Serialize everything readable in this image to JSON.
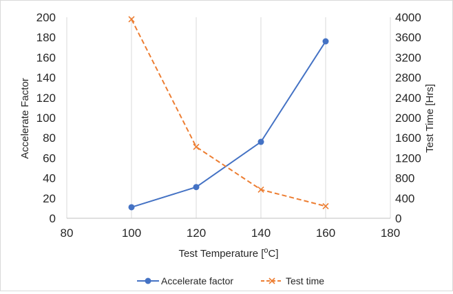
{
  "chart_data": {
    "type": "line",
    "x": [
      100,
      120,
      140,
      160
    ],
    "xlabel_parts": [
      "Test Temperature [",
      "o",
      "C]"
    ],
    "ylabel": "Accelerate  Factor",
    "y2label": "Test Time [Hrs]",
    "xlim": [
      80,
      180
    ],
    "ylim": [
      0,
      200
    ],
    "y2lim": [
      0,
      4000
    ],
    "xticks": [
      80,
      100,
      120,
      140,
      160,
      180
    ],
    "yticks": [
      0,
      20,
      40,
      60,
      80,
      100,
      120,
      140,
      160,
      180,
      200
    ],
    "y2ticks": [
      0,
      400,
      800,
      1200,
      1600,
      2000,
      2400,
      2800,
      3200,
      3600,
      4000
    ],
    "grid": "vertical",
    "legend": "bottom",
    "series": [
      {
        "name": "Accelerate factor",
        "axis": "left",
        "values": [
          11,
          31,
          76,
          176
        ],
        "color": "#4472C4",
        "style": "solid",
        "marker": "circle"
      },
      {
        "name": "Test time",
        "axis": "right",
        "values": [
          3960,
          1420,
          570,
          240
        ],
        "color": "#ED7D31",
        "style": "dashed",
        "marker": "x"
      }
    ]
  }
}
